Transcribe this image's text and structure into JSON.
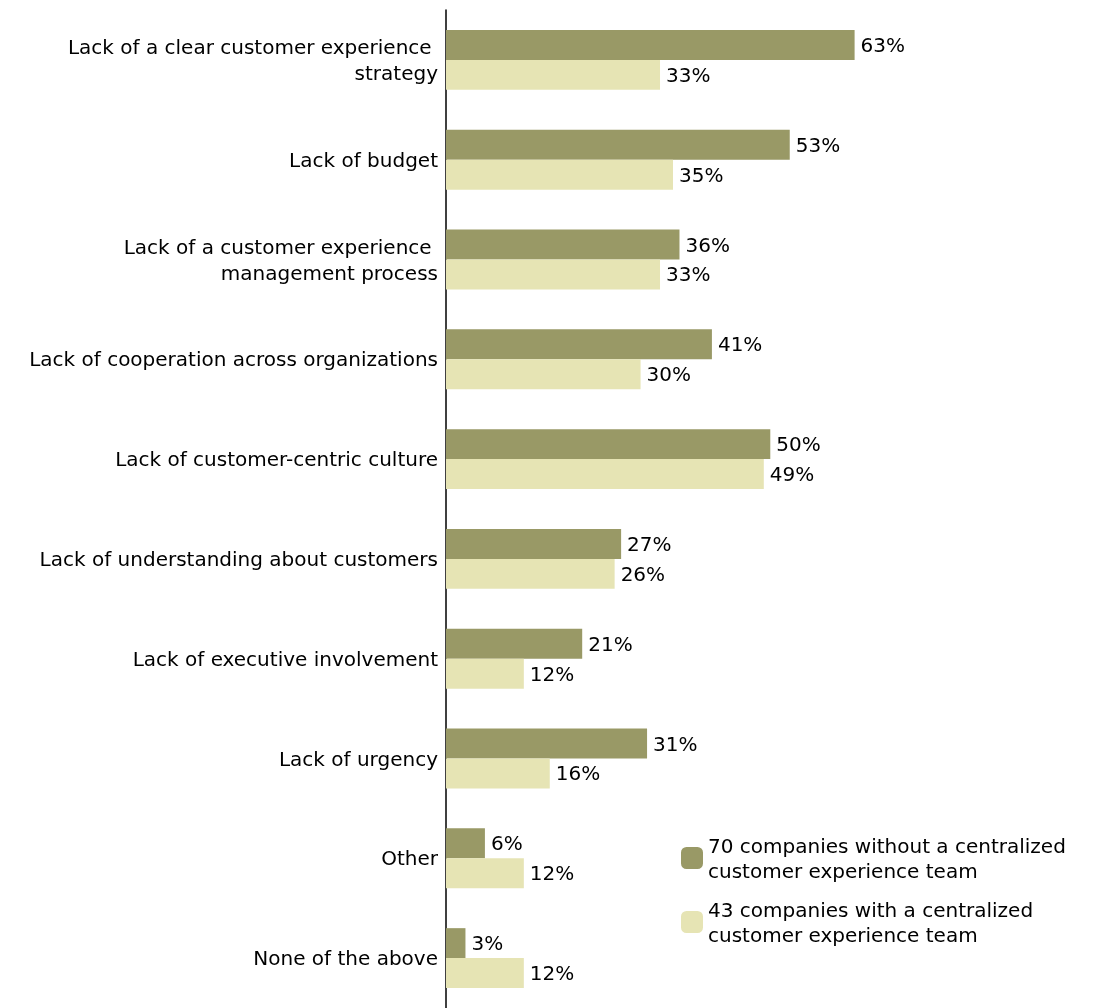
{
  "chart_data": {
    "type": "bar",
    "orientation": "horizontal",
    "categories": [
      "Lack of a clear customer experience strategy",
      "Lack of budget",
      "Lack of a customer experience management process",
      "Lack of cooperation across organizations",
      "Lack of customer-centric culture",
      "Lack of understanding about customers",
      "Lack of executive involvement",
      "Lack of urgency",
      "Other",
      "None of the above"
    ],
    "series": [
      {
        "name": "70 companies without a centralized customer experience team",
        "color": "#999966",
        "values": [
          63,
          53,
          36,
          41,
          50,
          27,
          21,
          31,
          6,
          3
        ],
        "value_labels": [
          "63%",
          "53%",
          "36%",
          "41%",
          "50%",
          "27%",
          "21%",
          "31%",
          "6%",
          "3%"
        ]
      },
      {
        "name": "43 companies with a centralized customer experience team",
        "color": "#e6e4b4",
        "values": [
          33,
          35,
          33,
          30,
          49,
          26,
          12,
          16,
          12,
          12
        ],
        "value_labels": [
          "33%",
          "35%",
          "33%",
          "30%",
          "49%",
          "26%",
          "12%",
          "16%",
          "12%",
          "12%"
        ]
      }
    ],
    "tick_labels": "y",
    "legend": "bottom right"
  }
}
